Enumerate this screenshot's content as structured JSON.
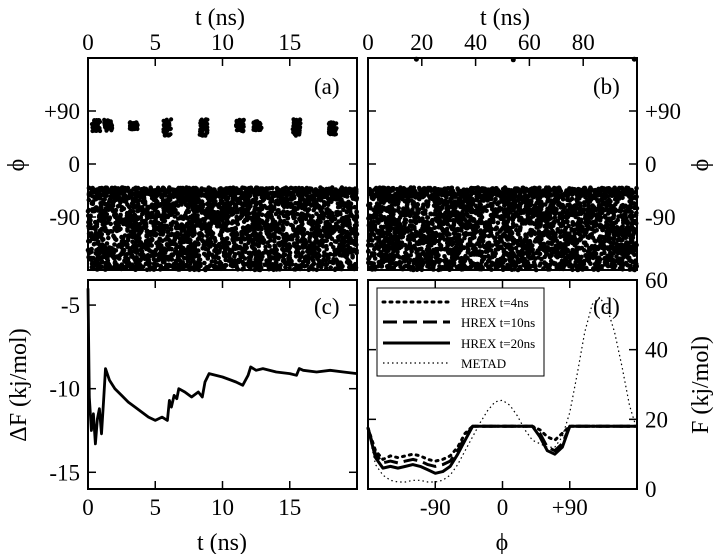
{
  "chart_data": [
    {
      "panel": "a",
      "type": "scatter",
      "label": "(a)",
      "xlabel": "t (ns)",
      "ylabel": "ϕ",
      "xlim": [
        0,
        20
      ],
      "ylim": [
        -180,
        180
      ],
      "xticks": [
        "0",
        "5",
        "10",
        "15"
      ],
      "yticks": [
        "+90",
        "0",
        "-90"
      ],
      "main_band": {
        "x": [
          0,
          20
        ],
        "y": [
          -180,
          -40
        ]
      },
      "clusters": [
        {
          "t": 0.6,
          "phi_center": 65,
          "spread": 10
        },
        {
          "t": 1.5,
          "phi_center": 65,
          "spread": 10
        },
        {
          "t": 3.4,
          "phi_center": 65,
          "spread": 6
        },
        {
          "t": 5.9,
          "phi_center": 62,
          "spread": 14
        },
        {
          "t": 8.6,
          "phi_center": 62,
          "spread": 14
        },
        {
          "t": 11.3,
          "phi_center": 65,
          "spread": 10
        },
        {
          "t": 12.6,
          "phi_center": 65,
          "spread": 8
        },
        {
          "t": 15.5,
          "phi_center": 62,
          "spread": 14
        },
        {
          "t": 18.2,
          "phi_center": 62,
          "spread": 12
        }
      ],
      "grid": false
    },
    {
      "panel": "b",
      "type": "scatter",
      "label": "(b)",
      "xlabel": "t (ns)",
      "ylabel": "ϕ",
      "xlim": [
        0,
        100
      ],
      "ylim": [
        -180,
        180
      ],
      "xticks": [
        "0",
        "20",
        "40",
        "60",
        "80"
      ],
      "yticks": [
        "+90",
        "0",
        "-90"
      ],
      "main_band": {
        "x": [
          0,
          100
        ],
        "y": [
          -180,
          -40
        ]
      },
      "outliers": [
        [
          18,
          178
        ],
        [
          54,
          177
        ],
        [
          99,
          178
        ]
      ],
      "grid": false
    },
    {
      "panel": "c",
      "type": "line",
      "label": "(c)",
      "xlabel": "t (ns)",
      "ylabel": "ΔF (kj/mol)",
      "xlim": [
        0,
        20
      ],
      "ylim": [
        -16,
        -3.5
      ],
      "xticks": [
        "0",
        "5",
        "10",
        "15"
      ],
      "yticks": [
        "-5",
        "-10",
        "-15"
      ],
      "x": [
        0,
        0.1,
        0.25,
        0.4,
        0.55,
        0.7,
        0.85,
        1.0,
        1.15,
        1.3,
        1.6,
        2.0,
        2.5,
        3.0,
        3.5,
        4.0,
        4.5,
        5.0,
        5.5,
        5.9,
        6.05,
        6.2,
        6.4,
        6.6,
        6.75,
        7.2,
        7.7,
        8.2,
        8.5,
        8.7,
        9.0,
        10.0,
        11.0,
        11.5,
        11.9,
        12.1,
        12.5,
        13.0,
        14.0,
        15.0,
        15.5,
        15.7,
        16.0,
        17.0,
        18.0,
        19.0,
        20.0
      ],
      "y": [
        -4.0,
        -10.5,
        -12.5,
        -11.5,
        -13.3,
        -11.8,
        -11.2,
        -12.7,
        -10.8,
        -8.8,
        -9.5,
        -10.0,
        -10.4,
        -10.8,
        -11.1,
        -11.4,
        -11.7,
        -11.9,
        -11.7,
        -11.9,
        -10.7,
        -11.1,
        -10.4,
        -10.6,
        -10.0,
        -10.2,
        -10.5,
        -10.2,
        -10.5,
        -9.6,
        -9.1,
        -9.3,
        -9.6,
        -9.8,
        -9.2,
        -8.7,
        -8.9,
        -8.8,
        -9.0,
        -9.1,
        -9.2,
        -8.8,
        -8.9,
        -9.0,
        -8.9,
        -9.0,
        -9.1
      ],
      "grid": false
    },
    {
      "panel": "d",
      "type": "line",
      "label": "(d)",
      "xlabel": "ϕ",
      "ylabel": "F (kj/mol)",
      "xlim": [
        -180,
        180
      ],
      "ylim": [
        0,
        60
      ],
      "xticks": [
        "-90",
        "0",
        "+90"
      ],
      "yticks": [
        "0",
        "20",
        "40",
        "60"
      ],
      "legend_position": "top-left",
      "x": [
        -180,
        -170,
        -160,
        -150,
        -140,
        -130,
        -120,
        -110,
        -100,
        -90,
        -80,
        -70,
        -60,
        -50,
        -40,
        -30,
        -20,
        -10,
        0,
        10,
        20,
        30,
        40,
        50,
        60,
        70,
        80,
        90,
        100,
        110,
        120,
        130,
        140,
        150,
        160,
        170,
        180
      ],
      "series": [
        {
          "name": "HREX t=4ns",
          "style": "dotted-heavy",
          "y": [
            17.5,
            11,
            8.5,
            9.5,
            9,
            9.5,
            10,
            9.5,
            8.5,
            8,
            8.5,
            9.5,
            12,
            16,
            18,
            18,
            18,
            18,
            18,
            18,
            18,
            18,
            18,
            17,
            15,
            14,
            16,
            18,
            18,
            18,
            18,
            18,
            18,
            18,
            18,
            18,
            18
          ]
        },
        {
          "name": "HREX t=10ns",
          "style": "dashed",
          "y": [
            17.5,
            10,
            7.5,
            8,
            7.5,
            8,
            8.5,
            8,
            7,
            6.5,
            7,
            8,
            11,
            15,
            18,
            18,
            18,
            18,
            18,
            18,
            18,
            18,
            18,
            16,
            12,
            11,
            13,
            18,
            18,
            18,
            18,
            18,
            18,
            18,
            18,
            18,
            18
          ]
        },
        {
          "name": "HREX t=20ns",
          "style": "solid",
          "y": [
            17.5,
            9,
            6,
            6.5,
            6,
            6.5,
            7,
            6.5,
            5.5,
            4.5,
            5,
            6.5,
            10,
            14,
            18,
            18,
            18,
            18,
            18,
            18,
            18,
            18,
            18,
            15,
            11,
            10,
            12,
            18,
            18,
            18,
            18,
            18,
            18,
            18,
            18,
            18,
            18
          ]
        },
        {
          "name": "METAD",
          "style": "dotted-thin",
          "y": [
            17,
            7,
            4,
            2.5,
            2,
            2,
            2.5,
            2.5,
            2,
            2,
            2.5,
            4,
            7,
            11,
            15,
            19,
            22.5,
            25,
            25.5,
            24,
            21,
            17,
            14,
            13,
            12,
            12,
            15,
            22,
            33,
            45,
            53,
            55,
            52,
            45,
            35,
            24,
            17
          ]
        }
      ],
      "grid": false
    }
  ]
}
